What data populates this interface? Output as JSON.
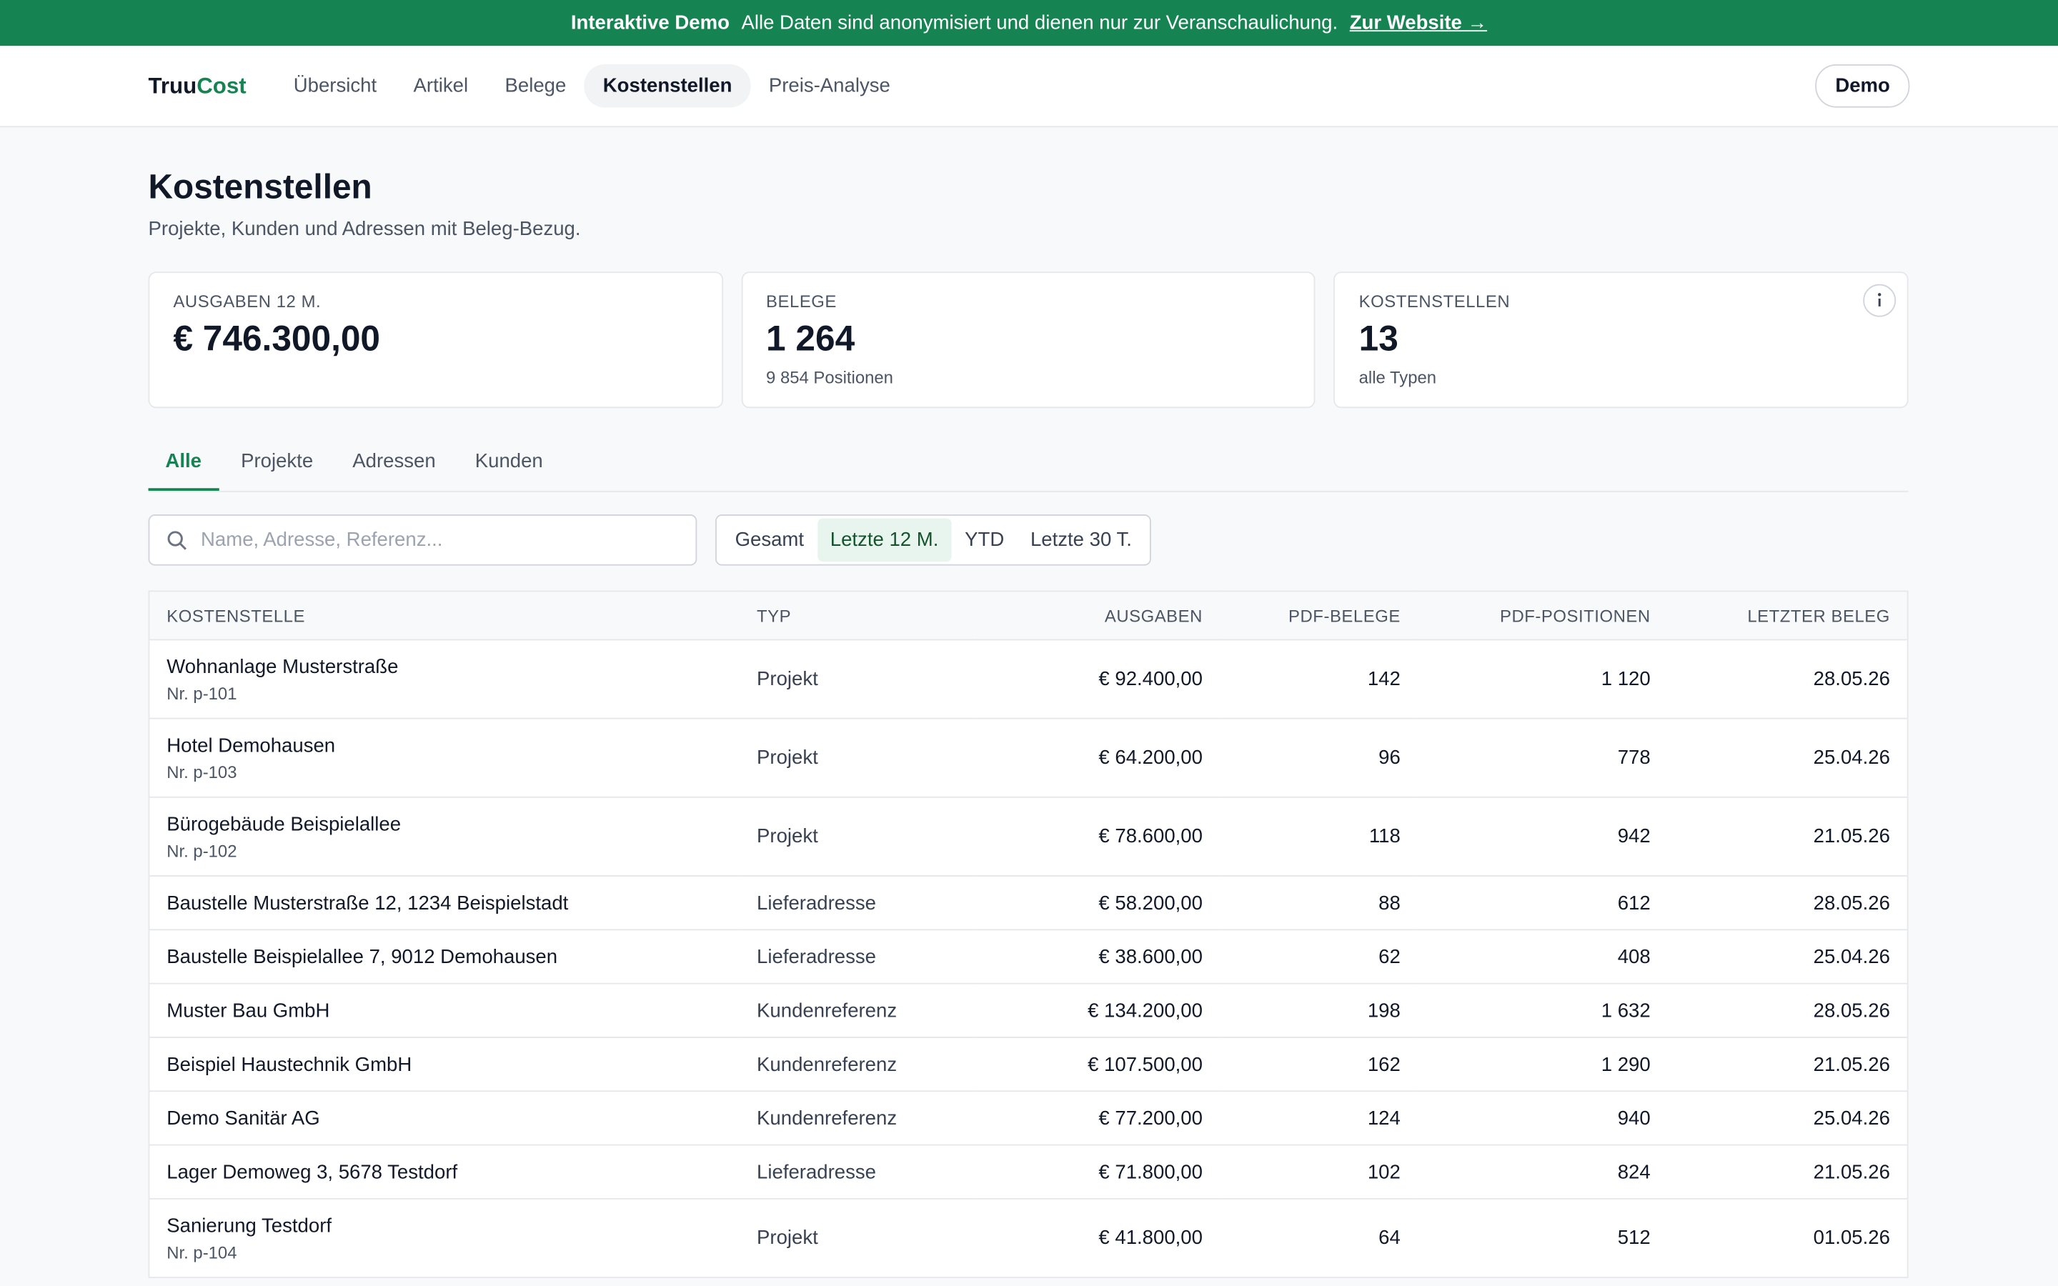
{
  "banner": {
    "title": "Interaktive Demo",
    "text": "Alle Daten sind anonymisiert und dienen nur zur Veranschaulichung.",
    "link": "Zur Website →"
  },
  "nav": {
    "brand_a": "Truu",
    "brand_b": "Cost",
    "items": [
      "Übersicht",
      "Artikel",
      "Belege",
      "Kostenstellen",
      "Preis-Analyse"
    ],
    "active": 3,
    "user": "Demo"
  },
  "header": {
    "title": "Kostenstellen",
    "subtitle": "Projekte, Kunden und Adressen mit Beleg-Bezug."
  },
  "stats": [
    {
      "label": "AUSGABEN 12 M.",
      "value": "€ 746.300,00"
    },
    {
      "label": "BELEGE",
      "value": "1 264",
      "sub": "9 854 Positionen"
    },
    {
      "label": "KOSTENSTELLEN",
      "value": "13",
      "sub": "alle Typen"
    }
  ],
  "tabs": {
    "items": [
      "Alle",
      "Projekte",
      "Adressen",
      "Kunden"
    ],
    "active": 0
  },
  "search": {
    "placeholder": "Name, Adresse, Referenz..."
  },
  "periods": {
    "items": [
      "Gesamt",
      "Letzte 12 M.",
      "YTD",
      "Letzte 30 T."
    ],
    "active": 1
  },
  "table": {
    "columns": [
      "KOSTENSTELLE",
      "TYP",
      "AUSGABEN",
      "PDF-BELEGE",
      "PDF-POSITIONEN",
      "LETZTER BELEG"
    ],
    "rows": [
      {
        "name": "Wohnanlage Musterstraße",
        "sub": "Nr. p-101",
        "type": "Projekt",
        "amount": "€ 92.400,00",
        "docs": "142",
        "items": "1 120",
        "date": "28.05.26"
      },
      {
        "name": "Hotel Demohausen",
        "sub": "Nr. p-103",
        "type": "Projekt",
        "amount": "€ 64.200,00",
        "docs": "96",
        "items": "778",
        "date": "25.04.26"
      },
      {
        "name": "Bürogebäude Beispielallee",
        "sub": "Nr. p-102",
        "type": "Projekt",
        "amount": "€ 78.600,00",
        "docs": "118",
        "items": "942",
        "date": "21.05.26"
      },
      {
        "name": "Baustelle Musterstraße 12, 1234 Beispielstadt",
        "type": "Lieferadresse",
        "amount": "€ 58.200,00",
        "docs": "88",
        "items": "612",
        "date": "28.05.26"
      },
      {
        "name": "Baustelle Beispielallee 7, 9012 Demohausen",
        "type": "Lieferadresse",
        "amount": "€ 38.600,00",
        "docs": "62",
        "items": "408",
        "date": "25.04.26"
      },
      {
        "name": "Muster Bau GmbH",
        "type": "Kundenreferenz",
        "amount": "€ 134.200,00",
        "docs": "198",
        "items": "1 632",
        "date": "28.05.26"
      },
      {
        "name": "Beispiel Haustechnik GmbH",
        "type": "Kundenreferenz",
        "amount": "€ 107.500,00",
        "docs": "162",
        "items": "1 290",
        "date": "21.05.26"
      },
      {
        "name": "Demo Sanitär AG",
        "type": "Kundenreferenz",
        "amount": "€ 77.200,00",
        "docs": "124",
        "items": "940",
        "date": "25.04.26"
      },
      {
        "name": "Lager Demoweg 3, 5678 Testdorf",
        "type": "Lieferadresse",
        "amount": "€ 71.800,00",
        "docs": "102",
        "items": "824",
        "date": "21.05.26"
      },
      {
        "name": "Sanierung Testdorf",
        "sub": "Nr. p-104",
        "type": "Projekt",
        "amount": "€ 41.800,00",
        "docs": "64",
        "items": "512",
        "date": "01.05.26"
      }
    ]
  }
}
